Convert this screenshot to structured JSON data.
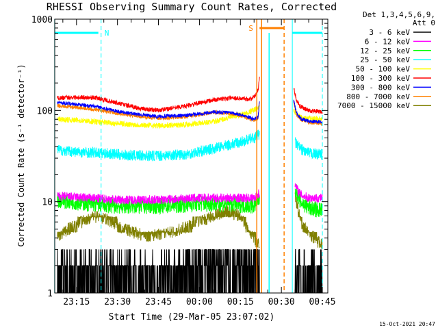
{
  "chart_data": {
    "type": "line",
    "title": "RHESSI Observing Summary Count Rates, Corrected",
    "xlabel": "Start Time (29-Mar-05 23:07:02)",
    "ylabel": "Corrected Count Rate (s⁻¹ detector⁻¹)",
    "yscale": "log",
    "ylim": [
      1,
      1000
    ],
    "xlim": [
      "23:07:02",
      "00:47:00"
    ],
    "x_tick_labels": [
      "23:15",
      "23:30",
      "23:45",
      "00:00",
      "00:15",
      "00:30",
      "00:45"
    ],
    "y_tick_labels": [
      "1",
      "10",
      "100",
      "1000"
    ],
    "legend": {
      "placement": "right",
      "header": [
        "Det 1,3,4,5,6,9,",
        "Att 0"
      ]
    },
    "annotations": {
      "night_marker": "N",
      "saa_marker": "S",
      "night_times": [
        "23:07",
        "23:24",
        "00:34",
        "00:45"
      ],
      "saa_times": [
        "00:21",
        "00:31"
      ],
      "saa_bar": [
        "00:22",
        "00:31"
      ],
      "data_gap": [
        "00:22",
        "00:34"
      ]
    },
    "timestamp": "15-Oct-2021 20:47",
    "series": [
      {
        "name": "3 - 6 keV",
        "color": "#000000",
        "style": "noisy",
        "noise": "bin",
        "segments": [
          {
            "x": [
              "23:08",
              "23:16",
              "23:22",
              "23:30",
              "23:40",
              "23:50",
              "00:00",
              "00:05",
              "00:10",
              "00:15",
              "00:20",
              "00:22"
            ],
            "y": [
              1.5,
              1.5,
              1.5,
              1.5,
              1.5,
              1.6,
              1.8,
              1.9,
              1.9,
              1.9,
              2.0,
              2.0
            ]
          },
          {
            "x": [
              "00:35",
              "00:37",
              "00:40",
              "00:45"
            ],
            "y": [
              1.8,
              1.5,
              1.5,
              1.5
            ]
          }
        ]
      },
      {
        "name": "6 - 12 keV",
        "color": "#ff00ff",
        "style": "noisy",
        "noise": 0.05,
        "segments": [
          {
            "x": [
              "23:08",
              "23:20",
              "23:30",
              "23:45",
              "00:00",
              "00:10",
              "00:20",
              "00:22"
            ],
            "y": [
              11.5,
              11.0,
              10.5,
              10.5,
              11.0,
              11.0,
              11.0,
              12.5
            ]
          },
          {
            "x": [
              "00:35",
              "00:37",
              "00:40",
              "00:45"
            ],
            "y": [
              15,
              12,
              11,
              11
            ]
          }
        ]
      },
      {
        "name": "12 - 25 keV",
        "color": "#00ff00",
        "style": "noisy",
        "noise": 0.09,
        "segments": [
          {
            "x": [
              "23:08",
              "23:20",
              "23:30",
              "23:45",
              "00:00",
              "00:10",
              "00:20",
              "00:22"
            ],
            "y": [
              10.5,
              9.5,
              9,
              9,
              9.5,
              9.5,
              9,
              11
            ]
          },
          {
            "x": [
              "00:35",
              "00:37",
              "00:40",
              "00:45"
            ],
            "y": [
              14,
              10,
              8.5,
              8
            ]
          }
        ]
      },
      {
        "name": "25 - 50 keV",
        "color": "#00ffff",
        "style": "noisy",
        "noise": 0.06,
        "segments": [
          {
            "x": [
              "23:08",
              "23:15",
              "23:25",
              "23:35",
              "23:45",
              "23:55",
              "00:05",
              "00:15",
              "00:20",
              "00:22"
            ],
            "y": [
              37,
              35,
              34,
              32,
              32,
              33,
              38,
              45,
              50,
              55
            ]
          },
          {
            "x": [
              "00:35",
              "00:37",
              "00:40",
              "00:45"
            ],
            "y": [
              45,
              38,
              34,
              33
            ]
          }
        ]
      },
      {
        "name": "50 - 100 keV",
        "color": "#ffff00",
        "style": "noisy",
        "noise": 0.03,
        "segments": [
          {
            "x": [
              "23:08",
              "23:15",
              "23:25",
              "23:35",
              "23:45",
              "23:55",
              "00:05",
              "00:12",
              "00:18",
              "00:20",
              "00:22"
            ],
            "y": [
              80,
              78,
              74,
              70,
              68,
              70,
              75,
              85,
              95,
              102,
              108
            ]
          },
          {
            "x": [
              "00:34.5",
              "00:36",
              "00:38",
              "00:45"
            ],
            "y": [
              100,
              88,
              82,
              80
            ]
          }
        ]
      },
      {
        "name": "100 - 300 keV",
        "color": "#ff0000",
        "style": "noisy",
        "noise": 0.025,
        "segments": [
          {
            "x": [
              "23:08",
              "23:15",
              "23:22",
              "23:30",
              "23:38",
              "23:45",
              "23:55",
              "00:05",
              "00:12",
              "00:18",
              "00:20",
              "00:21.5",
              "00:22"
            ],
            "y": [
              137,
              140,
              138,
              120,
              105,
              100,
              112,
              130,
              138,
              133,
              140,
              170,
              230
            ]
          },
          {
            "x": [
              "00:34.5",
              "00:35.5",
              "00:37",
              "00:40",
              "00:45"
            ],
            "y": [
              180,
              130,
              110,
              100,
              96
            ]
          }
        ]
      },
      {
        "name": "300 - 800 keV",
        "color": "#0000ff",
        "style": "noisy",
        "noise": 0.02,
        "segments": [
          {
            "x": [
              "23:08",
              "23:15",
              "23:22",
              "23:30",
              "23:38",
              "23:45",
              "23:55",
              "00:05",
              "00:12",
              "00:18",
              "00:20",
              "00:21.5",
              "00:22"
            ],
            "y": [
              122,
              117,
              110,
              98,
              90,
              86,
              88,
              96,
              95,
              85,
              80,
              85,
              130
            ]
          },
          {
            "x": [
              "00:34.5",
              "00:35.5",
              "00:37",
              "00:40",
              "00:45"
            ],
            "y": [
              130,
              95,
              82,
              76,
              75
            ]
          }
        ]
      },
      {
        "name": "800 - 7000 keV",
        "color": "#ff8000",
        "style": "noisy",
        "noise": 0.02,
        "segments": [
          {
            "x": [
              "23:08",
              "23:15",
              "23:22",
              "23:30",
              "23:38",
              "23:45",
              "23:55",
              "00:05",
              "00:12",
              "00:18",
              "00:20",
              "00:21.5",
              "00:22"
            ],
            "y": [
              112,
              108,
              102,
              93,
              86,
              82,
              85,
              95,
              92,
              82,
              78,
              82,
              125
            ]
          },
          {
            "x": [
              "00:34.5",
              "00:35.5",
              "00:37",
              "00:40",
              "00:45"
            ],
            "y": [
              125,
              90,
              80,
              74,
              72
            ]
          }
        ]
      },
      {
        "name": "7000 - 15000 keV",
        "color": "#808000",
        "style": "noisy",
        "noise": "step",
        "segments": [
          {
            "x": [
              "23:08",
              "23:12",
              "23:17",
              "23:23",
              "23:28",
              "23:33",
              "23:40",
              "23:47",
              "23:53",
              "00:00",
              "00:05",
              "00:10",
              "00:15",
              "00:18",
              "00:20",
              "00:22"
            ],
            "y": [
              4.0,
              5.0,
              6.0,
              7.0,
              6.0,
              5.0,
              4.2,
              4.4,
              5.0,
              6.0,
              7.0,
              8.0,
              7.0,
              5.0,
              4.0,
              3.5
            ]
          },
          {
            "x": [
              "00:35",
              "00:37",
              "00:40",
              "00:45"
            ],
            "y": [
              12,
              6,
              4.5,
              3.5
            ]
          }
        ]
      }
    ]
  }
}
